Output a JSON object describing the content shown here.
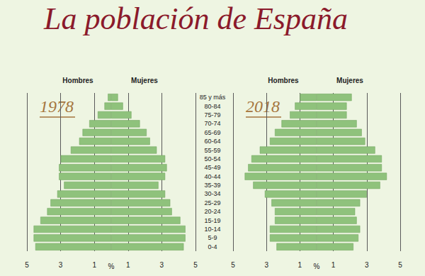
{
  "title": "La población de España",
  "chart_data": [
    {
      "type": "bar",
      "title": "1978",
      "orientation": "horizontal",
      "grid": true,
      "xlabel": "%",
      "categories": [
        "0-4",
        "5-9",
        "10-14",
        "15-19",
        "20-24",
        "25-29",
        "30-34",
        "35-39",
        "40-44",
        "45-49",
        "50-54",
        "55-59",
        "60-64",
        "65-69",
        "70-74",
        "75-79",
        "80-84",
        "85 y más"
      ],
      "xlim": [
        0,
        5
      ],
      "xticks": [
        1,
        3,
        5
      ],
      "series": [
        {
          "name": "Hombres",
          "color": "#8fc27c",
          "values": [
            4.5,
            4.6,
            4.6,
            4.2,
            3.8,
            3.6,
            3.2,
            2.8,
            3.1,
            3.1,
            3.0,
            2.4,
            1.9,
            1.7,
            1.3,
            0.8,
            0.4,
            0.2
          ]
        },
        {
          "name": "Mujeres",
          "color": "#8fc27c",
          "values": [
            4.3,
            4.4,
            4.4,
            4.1,
            3.6,
            3.5,
            3.2,
            2.8,
            3.2,
            3.3,
            3.2,
            2.7,
            2.3,
            2.1,
            1.7,
            1.2,
            0.7,
            0.4
          ]
        }
      ]
    },
    {
      "type": "bar",
      "title": "2018",
      "orientation": "horizontal",
      "grid": true,
      "xlabel": "%",
      "categories": [
        "0-4",
        "5-9",
        "10-14",
        "15-19",
        "20-24",
        "25-29",
        "30-34",
        "35-39",
        "40-44",
        "45-49",
        "50-54",
        "55-59",
        "60-64",
        "65-69",
        "70-74",
        "75-79",
        "80-84",
        "85 y más"
      ],
      "xlim": [
        0,
        5
      ],
      "xticks": [
        1,
        3,
        5
      ],
      "series": [
        {
          "name": "Hombres",
          "color": "#8fc27c",
          "values": [
            2.4,
            2.8,
            2.8,
            2.5,
            2.5,
            2.7,
            3.1,
            3.8,
            4.3,
            4.1,
            3.9,
            3.4,
            2.8,
            2.5,
            2.1,
            1.6,
            1.3,
            1.0
          ]
        },
        {
          "name": "Mujeres",
          "color": "#8fc27c",
          "values": [
            2.2,
            2.5,
            2.6,
            2.4,
            2.3,
            2.6,
            3.0,
            3.8,
            4.2,
            3.9,
            3.9,
            3.5,
            2.9,
            2.7,
            2.4,
            1.8,
            1.8,
            2.1
          ]
        }
      ]
    }
  ]
}
